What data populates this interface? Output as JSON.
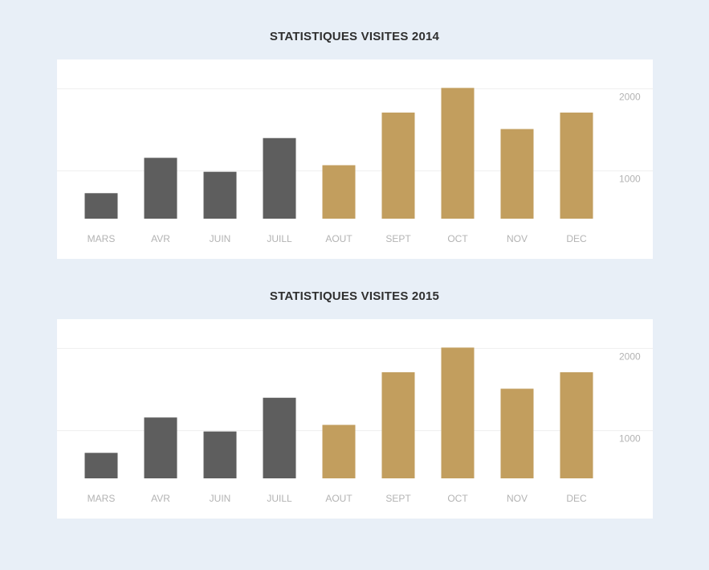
{
  "charts": [
    {
      "title": "STATISTIQUES VISITES 2014"
    },
    {
      "title": "STATISTIQUES VISITES 2015"
    }
  ],
  "colors": {
    "past": "#5e5e5e",
    "current": "#c29e5e",
    "grid": "#efefef",
    "tick": "#b3b3b3"
  },
  "chart_data": [
    {
      "type": "bar",
      "title": "STATISTIQUES VISITES 2014",
      "categories": [
        "MARS",
        "AVR",
        "JUIN",
        "JUILL",
        "AOUT",
        "SEPT",
        "OCT",
        "NOV",
        "DEC"
      ],
      "values": [
        730,
        1160,
        990,
        1400,
        1070,
        1710,
        2010,
        1510,
        1710
      ],
      "yticks": [
        1000,
        2000
      ],
      "ylim": [
        420,
        2160
      ],
      "y_axis_position": "right",
      "grid": true,
      "highlight_from_index": 4
    },
    {
      "type": "bar",
      "title": "STATISTIQUES VISITES 2015",
      "categories": [
        "MARS",
        "AVR",
        "JUIN",
        "JUILL",
        "AOUT",
        "SEPT",
        "OCT",
        "NOV",
        "DEC"
      ],
      "values": [
        730,
        1160,
        990,
        1400,
        1070,
        1710,
        2010,
        1510,
        1710
      ],
      "yticks": [
        1000,
        2000
      ],
      "ylim": [
        420,
        2160
      ],
      "y_axis_position": "right",
      "grid": true,
      "highlight_from_index": 4
    }
  ]
}
